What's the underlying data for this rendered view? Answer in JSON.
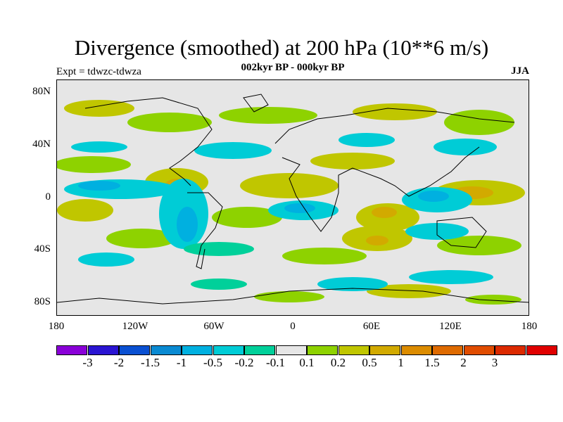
{
  "title": "Divergence (smoothed) at 200 hPa (10**6 m/s)",
  "subtitle": "002kyr BP - 000kyr BP",
  "experiment": "Expt = tdwzc-tdwza",
  "season": "JJA",
  "axes": {
    "x_ticks": [
      "180",
      "120W",
      "60W",
      "0",
      "60E",
      "120E",
      "180"
    ],
    "y_ticks": [
      "80N",
      "40N",
      "0",
      "40S",
      "80S"
    ]
  },
  "colorbar": {
    "colors": [
      "#8a00d8",
      "#2a14d2",
      "#0a50d2",
      "#0a8ad2",
      "#00b0e0",
      "#00ccd6",
      "#00d09a",
      "#e6e6e6",
      "#8ed200",
      "#c0c600",
      "#d2aa00",
      "#dc8c00",
      "#de6a00",
      "#e04c00",
      "#dc2a00",
      "#e00000"
    ],
    "labels": [
      "-3",
      "-2",
      "-1.5",
      "-1",
      "-0.5",
      "-0.2",
      "-0.1",
      "0.1",
      "0.2",
      "0.5",
      "1",
      "1.5",
      "2",
      "3"
    ]
  },
  "map": {
    "background_color": "#e6e6e6",
    "projection": "cylindrical equidistant",
    "lon_range": [
      -180,
      180
    ],
    "lat_range": [
      -90,
      90
    ]
  }
}
